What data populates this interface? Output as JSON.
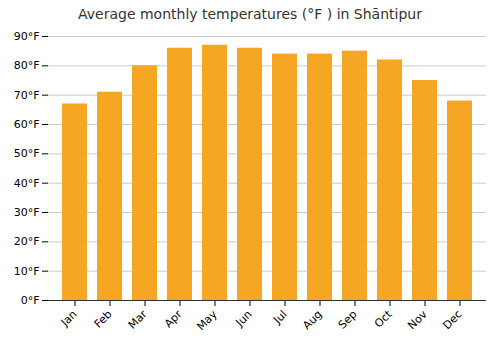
{
  "chart_data": {
    "type": "bar",
    "title": "Average monthly temperatures (°F ) in Shāntipur",
    "categories": [
      "Jan",
      "Feb",
      "Mar",
      "Apr",
      "May",
      "Jun",
      "Jul",
      "Aug",
      "Sep",
      "Oct",
      "Nov",
      "Dec"
    ],
    "values": [
      67,
      71,
      80,
      86,
      87,
      86,
      84,
      84,
      85,
      82,
      75,
      68
    ],
    "color": "#F5A623",
    "ylim": [
      0,
      90
    ],
    "yticks": [
      {
        "value": 0,
        "label": "0°F"
      },
      {
        "value": 10,
        "label": "10°F"
      },
      {
        "value": 20,
        "label": "20°F"
      },
      {
        "value": 30,
        "label": "30°F"
      },
      {
        "value": 40,
        "label": "40°F"
      },
      {
        "value": 50,
        "label": "50°F"
      },
      {
        "value": 60,
        "label": "60°F"
      },
      {
        "value": 70,
        "label": "70°F"
      },
      {
        "value": 80,
        "label": "80°F"
      },
      {
        "value": 90,
        "label": "90°F"
      }
    ],
    "grid": true
  }
}
